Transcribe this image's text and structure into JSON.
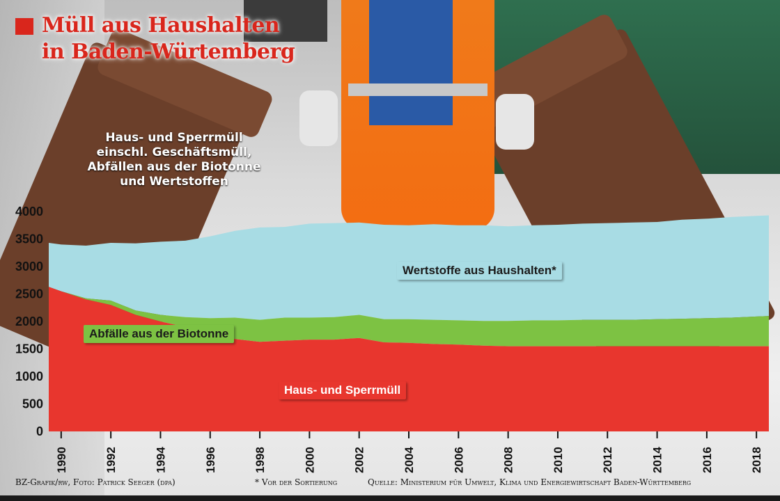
{
  "title": "Müll aus Haushalten\nin Baden-Würtemberg",
  "annotation": "Haus- und Sperrmüll einschl. Geschäftsmüll, Abfällen aus der Biotonne und Wertstoffen",
  "colors": {
    "haus": "#e8362e",
    "bio": "#7dc243",
    "wert": "#a8dce4",
    "accent": "#d9261c"
  },
  "footer": {
    "credit": "BZ-Grafik/rw, Foto: Patrick Seeger (dpa)",
    "note": "* Vor der Sortierung",
    "source": "Quelle: Ministerium für Umwelt, Klima und Energiewirtschaft Baden-Württemberg"
  },
  "chart_data": {
    "type": "area",
    "stacked": true,
    "title": "Müll aus Haushalten in Baden-Würtemberg",
    "xlabel": "",
    "ylabel": "",
    "ylim": [
      0,
      4000
    ],
    "xlim": [
      1989.5,
      2018.5
    ],
    "yticks": [
      "0",
      "500",
      "1000",
      "1500",
      "2000",
      "2500",
      "3000",
      "3500",
      "4000"
    ],
    "xticks": [
      "1990",
      "1992",
      "1994",
      "1996",
      "1998",
      "2000",
      "2002",
      "2004",
      "2006",
      "2008",
      "2010",
      "2012",
      "2014",
      "2016",
      "2018"
    ],
    "grid": false,
    "legend": "inline labels",
    "x": [
      1989.5,
      1990,
      1991,
      1992,
      1993,
      1994,
      1995,
      1996,
      1997,
      1998,
      1999,
      2000,
      2001,
      2002,
      2003,
      2004,
      2005,
      2006,
      2007,
      2008,
      2009,
      2010,
      2011,
      2012,
      2013,
      2014,
      2015,
      2016,
      2017,
      2018,
      2018.5
    ],
    "series": [
      {
        "name": "Haus- und Sperrmüll",
        "values": [
          2630,
          2550,
          2400,
          2300,
          2120,
          2000,
          1900,
          1760,
          1680,
          1630,
          1650,
          1670,
          1670,
          1700,
          1620,
          1610,
          1590,
          1580,
          1560,
          1550,
          1550,
          1550,
          1550,
          1550,
          1550,
          1550,
          1550,
          1550,
          1550,
          1550,
          1550
        ]
      },
      {
        "name": "Abfälle aus der Biotonne",
        "values": [
          0,
          0,
          20,
          80,
          80,
          120,
          180,
          300,
          390,
          400,
          420,
          400,
          410,
          420,
          420,
          430,
          440,
          440,
          450,
          460,
          470,
          470,
          480,
          480,
          480,
          490,
          500,
          510,
          520,
          540,
          550
        ]
      },
      {
        "name": "Wertstoffe aus Haushalten*",
        "values": [
          800,
          850,
          960,
          1050,
          1220,
          1330,
          1390,
          1490,
          1580,
          1680,
          1650,
          1710,
          1710,
          1680,
          1720,
          1710,
          1740,
          1730,
          1740,
          1720,
          1730,
          1740,
          1750,
          1760,
          1770,
          1770,
          1800,
          1810,
          1830,
          1830,
          1830
        ]
      }
    ]
  }
}
